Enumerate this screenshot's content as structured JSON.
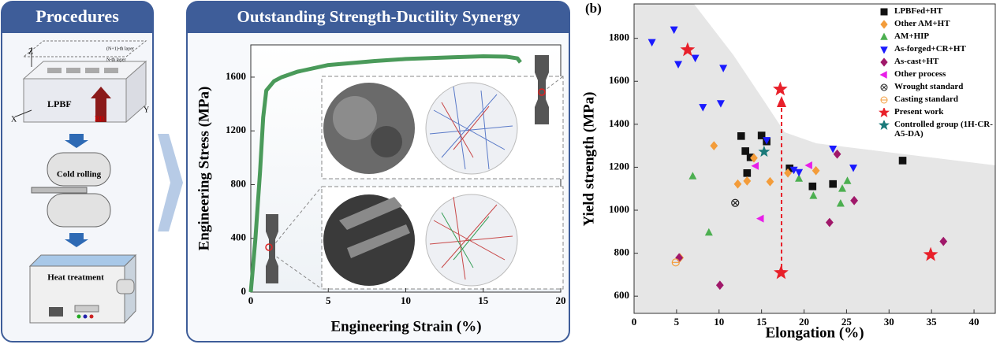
{
  "panels": {
    "procedures": {
      "title": "Procedures",
      "layer_top": "(N+1)-th layer",
      "layer": "N-th layer",
      "axis_x": "X",
      "axis_y": "Y",
      "axis_z": "Z",
      "process": "LPBF",
      "build_direction": "BD",
      "step2": "Cold rolling",
      "step3": "Heat treatment"
    },
    "synergy": {
      "title": "Outstanding Strength-Ductility Synergy"
    }
  },
  "chart_data": [
    {
      "type": "line",
      "xlabel": "Engineering Strain (%)",
      "ylabel": "Engineering Stress (MPa)",
      "color": "#4a9a5a",
      "x": [
        0,
        0.3,
        0.6,
        0.8,
        1,
        1.5,
        2,
        3,
        5,
        8,
        10,
        13,
        15,
        16.5,
        17.2,
        17.4
      ],
      "values": [
        0,
        400,
        900,
        1300,
        1500,
        1570,
        1600,
        1640,
        1690,
        1720,
        1735,
        1748,
        1755,
        1752,
        1740,
        1710
      ],
      "xlim": [
        0,
        20
      ],
      "ylim": [
        0,
        1840
      ],
      "xticks": [
        0,
        5,
        10,
        15,
        20
      ],
      "yticks": [
        0,
        400,
        800,
        1200,
        1600
      ]
    },
    {
      "type": "scatter",
      "panel_label": "(b)",
      "xlabel": "Elongation (%)",
      "ylabel": "Yield strength (MPa)",
      "xlim": [
        0,
        42.5
      ],
      "ylim": [
        520,
        1960
      ],
      "xticks": [
        0,
        5,
        10,
        15,
        20,
        25,
        30,
        35,
        40
      ],
      "yticks": [
        600,
        800,
        1000,
        1200,
        1400,
        1600,
        1800
      ],
      "series": [
        {
          "name": "LPBFed+HT",
          "color": "#111111",
          "marker": "square",
          "x": [
            12.6,
            13.1,
            13.7,
            13.3,
            15,
            21,
            23.4,
            31.6,
            18.3,
            15.6
          ],
          "values": [
            1345,
            1275,
            1246,
            1173,
            1348,
            1111,
            1122,
            1231,
            1195,
            1320
          ]
        },
        {
          "name": "Other AM+HT",
          "color": "#f39c3a",
          "marker": "diamond",
          "x": [
            9.4,
            12.2,
            13.3,
            16,
            14.1,
            18.1,
            21.4,
            5.4
          ],
          "values": [
            1300,
            1122,
            1136,
            1133,
            1243,
            1173,
            1184,
            779
          ]
        },
        {
          "name": "AM+HIP",
          "color": "#4caf50",
          "marker": "triangle-up",
          "x": [
            6.9,
            8.8,
            21.1,
            25.1,
            24.5,
            24.3,
            19.4
          ],
          "values": [
            1158,
            896,
            1067,
            1136,
            1100,
            1031,
            1147
          ]
        },
        {
          "name": "As-forged+CR+HT",
          "color": "#1a1aff",
          "marker": "triangle-down",
          "x": [
            2.1,
            4.7,
            5.2,
            7.2,
            10.5,
            8.1,
            10.2,
            15.6,
            25.8,
            23.4,
            19.4,
            18.8
          ],
          "values": [
            1782,
            1841,
            1680,
            1709,
            1662,
            1480,
            1498,
            1326,
            1198,
            1286,
            1177,
            1188
          ]
        },
        {
          "name": "As-cast+HT",
          "color": "#a0186a",
          "marker": "diamond",
          "x": [
            5.3,
            10.1,
            23,
            25.9,
            36.4,
            23.9
          ],
          "values": [
            779,
            651,
            943,
            1045,
            855,
            1261
          ]
        },
        {
          "name": "Other process",
          "color": "#e81ee8",
          "marker": "triangle-left",
          "x": [
            14.9,
            20.6,
            14.3
          ],
          "values": [
            961,
            1209,
            1206
          ]
        },
        {
          "name": "Wrought standard",
          "color": "#222222",
          "marker": "circle-cross",
          "x": [
            11.9
          ],
          "values": [
            1034
          ]
        },
        {
          "name": "Casting standard",
          "color": "#f39c3a",
          "marker": "circle-line",
          "x": [
            4.9
          ],
          "values": [
            757
          ]
        },
        {
          "name": "Present work",
          "color": "#e8202a",
          "marker": "star",
          "x": [
            6.3,
            17.2,
            17.3,
            34.9
          ],
          "values": [
            1746,
            1563,
            709,
            793
          ]
        },
        {
          "name": "Controlled group (1H-CR-A5-DA)",
          "color": "#1a7a7a",
          "marker": "star",
          "x": [
            15.3
          ],
          "values": [
            1272
          ]
        }
      ]
    }
  ]
}
